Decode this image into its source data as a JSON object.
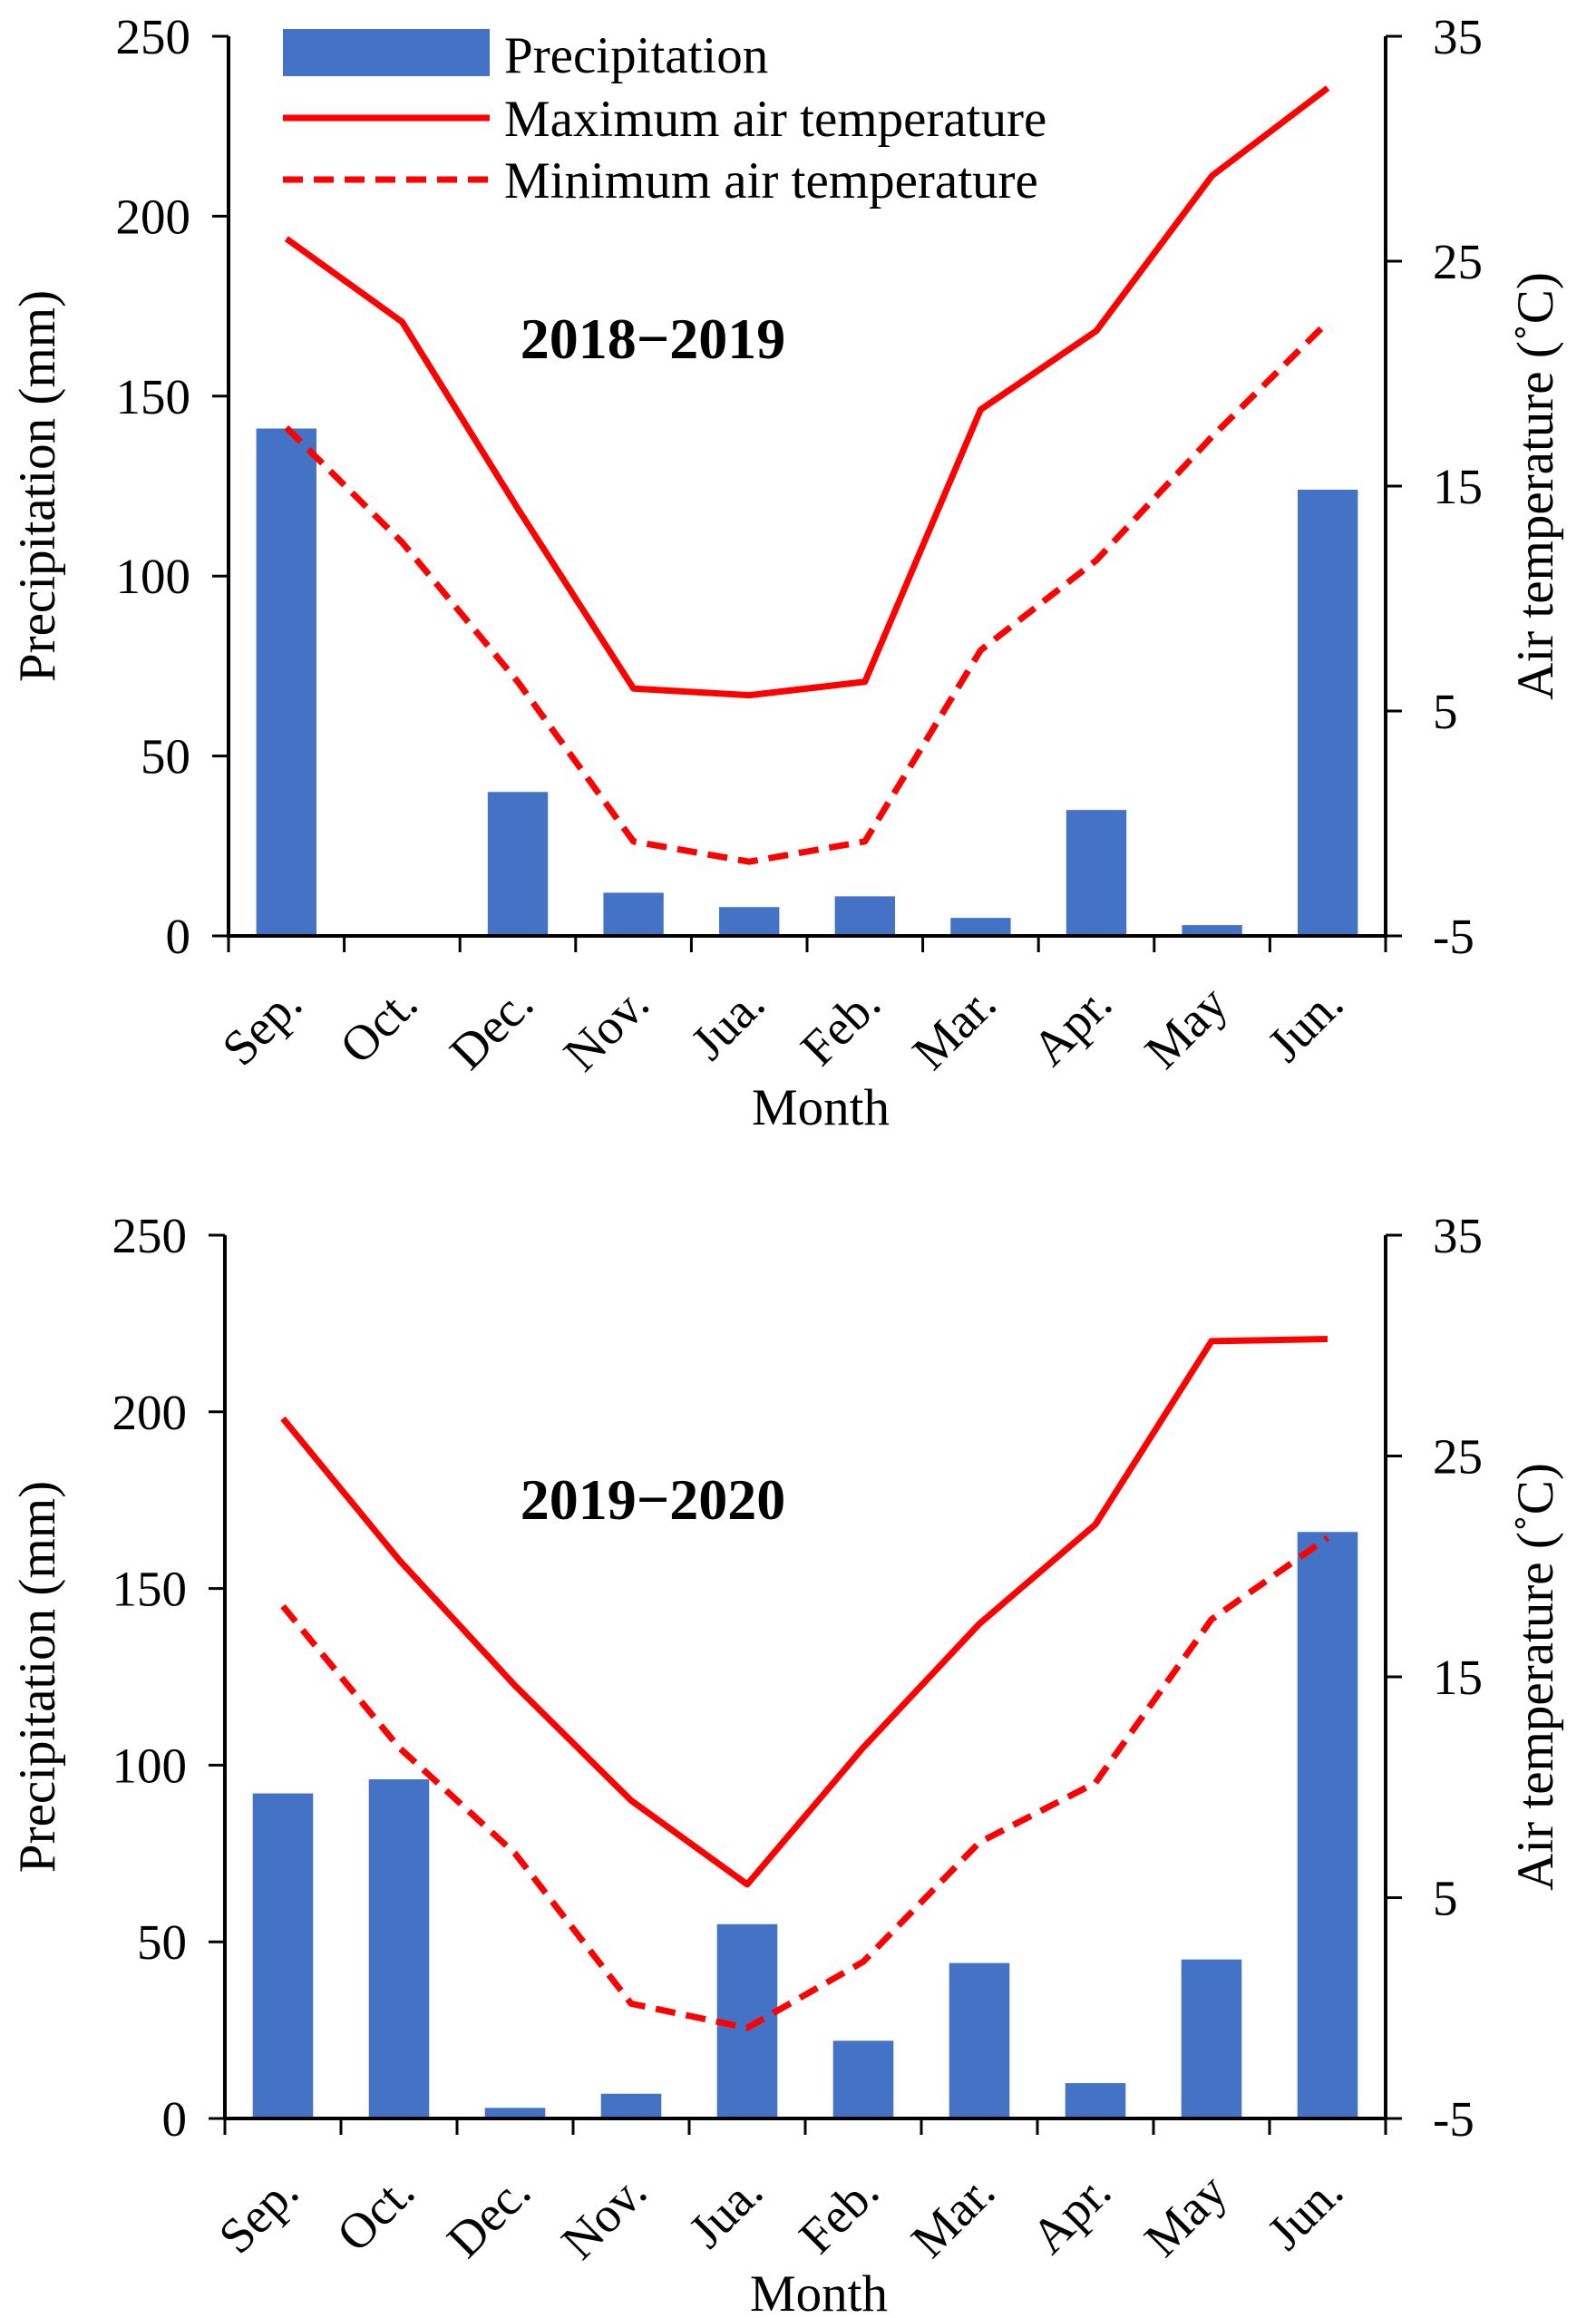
{
  "figure": {
    "panels_description": "Two stacked combination charts"
  },
  "colors": {
    "bar": "#4472C4",
    "line": "#FF0000",
    "axis": "#000000"
  },
  "chart_data": [
    {
      "type": "bar",
      "title": "2018−2019",
      "categories": [
        "Sep.",
        "Oct.",
        "Dec.",
        "Nov.",
        "Jua.",
        "Feb.",
        "Mar.",
        "Apr.",
        "May",
        "Jun."
      ],
      "xlabel": "Month",
      "ylabel": "Precipitation (mm)",
      "y2label": "Air temperature (˚C)",
      "ylim": [
        0,
        250
      ],
      "y_ticks": [
        0,
        50,
        100,
        150,
        200,
        250
      ],
      "y2lim": [
        -5,
        35
      ],
      "y2_ticks": [
        -5,
        5,
        15,
        25,
        35
      ],
      "grid": false,
      "legend_position": "top-left",
      "series": [
        {
          "name": "Precipitation",
          "type": "bar",
          "axis": "left",
          "values": [
            141,
            0,
            40,
            12,
            8,
            11,
            5,
            35,
            3,
            124
          ]
        },
        {
          "name": "Maximum air temperature",
          "type": "line",
          "style": "solid",
          "axis": "right",
          "values": [
            26,
            22.3,
            14,
            6,
            5.7,
            6.3,
            18.4,
            21.9,
            28.8,
            32.7
          ]
        },
        {
          "name": "Minimum air temperature",
          "type": "line",
          "style": "dashed",
          "axis": "right",
          "values": [
            17.6,
            12.5,
            6.3,
            -0.8,
            -1.7,
            -0.8,
            7.7,
            11.7,
            17.2,
            22.3
          ]
        }
      ]
    },
    {
      "type": "bar",
      "title": "2019−2020",
      "categories": [
        "Sep.",
        "Oct.",
        "Dec.",
        "Nov.",
        "Jua.",
        "Feb.",
        "Mar.",
        "Apr.",
        "May",
        "Jun."
      ],
      "xlabel": "Month",
      "ylabel": "Precipitation (mm)",
      "y2label": "Air temperature (˚C)",
      "ylim": [
        0,
        250
      ],
      "y_ticks": [
        0,
        50,
        100,
        150,
        200,
        250
      ],
      "y2lim": [
        -5,
        35
      ],
      "y2_ticks": [
        -5,
        5,
        15,
        25,
        35
      ],
      "grid": false,
      "series": [
        {
          "name": "Precipitation",
          "type": "bar",
          "axis": "left",
          "values": [
            92,
            96,
            3,
            7,
            55,
            22,
            44,
            10,
            45,
            166
          ]
        },
        {
          "name": "Maximum air temperature",
          "type": "line",
          "style": "solid",
          "axis": "right",
          "values": [
            26.7,
            20.3,
            14.6,
            9.4,
            5.6,
            11.8,
            17.4,
            21.9,
            30.2,
            30.3
          ]
        },
        {
          "name": "Minimum air temperature",
          "type": "line",
          "style": "dashed",
          "axis": "right",
          "values": [
            18.2,
            11.8,
            7.0,
            0.2,
            -0.9,
            2.1,
            7.5,
            10.2,
            17.6,
            21.3
          ]
        }
      ]
    }
  ]
}
